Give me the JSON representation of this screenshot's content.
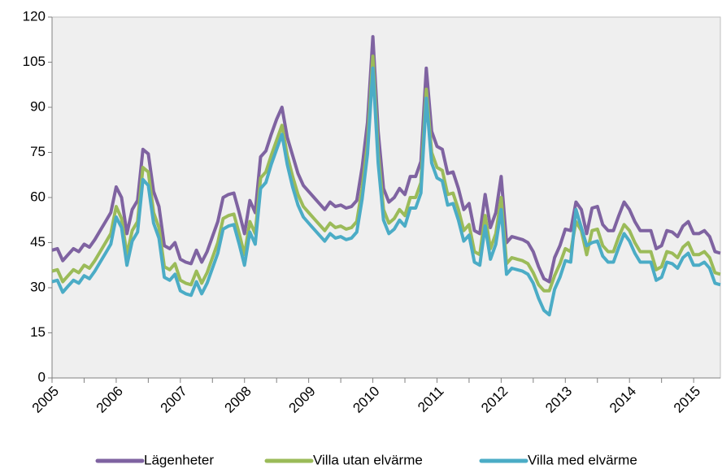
{
  "chart_data": {
    "type": "line",
    "categories": [
      "2005",
      null,
      null,
      null,
      null,
      null,
      null,
      null,
      null,
      null,
      null,
      null,
      "2006",
      null,
      null,
      null,
      null,
      null,
      null,
      null,
      null,
      null,
      null,
      null,
      "2007",
      null,
      null,
      null,
      null,
      null,
      null,
      null,
      null,
      null,
      null,
      null,
      "2008",
      null,
      null,
      null,
      null,
      null,
      null,
      null,
      null,
      null,
      null,
      null,
      "2009",
      null,
      null,
      null,
      null,
      null,
      null,
      null,
      null,
      null,
      null,
      null,
      "2010",
      null,
      null,
      null,
      null,
      null,
      null,
      null,
      null,
      null,
      null,
      null,
      "2011",
      null,
      null,
      null,
      null,
      null,
      null,
      null,
      null,
      null,
      null,
      null,
      "2012",
      null,
      null,
      null,
      null,
      null,
      null,
      null,
      null,
      null,
      null,
      null,
      "2013",
      null,
      null,
      null,
      null,
      null,
      null,
      null,
      null,
      null,
      null,
      null,
      "2014",
      null,
      null,
      null,
      null,
      null,
      null,
      null,
      null,
      null,
      null,
      null,
      "2015",
      null,
      null,
      null,
      null,
      null
    ],
    "series": [
      {
        "name": "Lägenheter",
        "color": "#7f63a1",
        "values": [
          42.5,
          43,
          39,
          41,
          43,
          42,
          44.5,
          43.5,
          46,
          49,
          52,
          55,
          63.5,
          60,
          48,
          56,
          59,
          76,
          74.5,
          62,
          57,
          44,
          43,
          45,
          39.5,
          38.5,
          38,
          42.5,
          38.5,
          42,
          47,
          52,
          60,
          61,
          61.5,
          55,
          48,
          59,
          55,
          73.5,
          75.5,
          81,
          86,
          90,
          80,
          74,
          68,
          64,
          62,
          60,
          58,
          56,
          58.5,
          57,
          57.5,
          56.5,
          57,
          59,
          70,
          85,
          113.5,
          82,
          63,
          58.5,
          60,
          63,
          61,
          67,
          67,
          72,
          103,
          82,
          77,
          76,
          68,
          68.5,
          63,
          56,
          58,
          49,
          48,
          61,
          50,
          55,
          67,
          45,
          47,
          46.5,
          46,
          45,
          42,
          37,
          33,
          32,
          40,
          44,
          49.5,
          49,
          58.5,
          56,
          48,
          56.5,
          57,
          51,
          49,
          49,
          54,
          58.5,
          56,
          52,
          49,
          49,
          49,
          43,
          44,
          49,
          48.5,
          47,
          50.5,
          52,
          48,
          48,
          49,
          47,
          42,
          41.5
        ]
      },
      {
        "name": "Villa utan elvärme",
        "color": "#9bbb59",
        "values": [
          35.5,
          36,
          32,
          34,
          36,
          35,
          37.5,
          36.5,
          39,
          42,
          45,
          48,
          57,
          53,
          41,
          49,
          52,
          70,
          68.5,
          55,
          50,
          37,
          36,
          38,
          32.5,
          31.5,
          31,
          35.5,
          31.5,
          35,
          40,
          45,
          53,
          54,
          54.5,
          48,
          41,
          52,
          48,
          66.5,
          68.5,
          74,
          79,
          84,
          74,
          67,
          61,
          57,
          55,
          53,
          51,
          49,
          51.5,
          50,
          50.5,
          49.5,
          50,
          52,
          63,
          78,
          107,
          75,
          56,
          51.5,
          53,
          56,
          54,
          60,
          60,
          65,
          96,
          75,
          70,
          69,
          61,
          61.5,
          56,
          49,
          51,
          42,
          41,
          54,
          43,
          48,
          60,
          38,
          40,
          39.5,
          39,
          38,
          35,
          31,
          29,
          29,
          34,
          38,
          43,
          42,
          52,
          49,
          41,
          49,
          49.5,
          44,
          42,
          42,
          47,
          51,
          49,
          45,
          42,
          42,
          42,
          36,
          37,
          42,
          41.5,
          40,
          43.5,
          45,
          41,
          41,
          42,
          40,
          35,
          34.5
        ]
      },
      {
        "name": "Villa med elvärme",
        "color": "#4bacc6",
        "values": [
          32,
          32.5,
          28.5,
          30.5,
          32.5,
          31.5,
          34,
          33,
          35.5,
          38.5,
          41.5,
          44.5,
          53.5,
          50,
          37.5,
          45.5,
          48.5,
          66,
          64,
          51.5,
          46.5,
          33.5,
          32.5,
          34.5,
          29,
          28,
          27.5,
          32,
          28,
          31.5,
          36.5,
          41.5,
          49.5,
          50.5,
          51,
          44.5,
          37.5,
          48.5,
          44.5,
          63,
          65,
          71,
          76,
          81,
          71,
          63.5,
          57.5,
          53.5,
          51.5,
          49.5,
          47.5,
          45.5,
          48,
          46.5,
          47,
          46,
          46.5,
          48.5,
          59.5,
          74.5,
          103,
          71.5,
          52.5,
          48,
          49.5,
          52.5,
          50.5,
          56.5,
          56.5,
          61.5,
          93,
          71.5,
          66.5,
          65.5,
          57.5,
          58,
          52.5,
          45.5,
          47.5,
          38.5,
          37.5,
          50.5,
          39.5,
          44.5,
          56,
          34.5,
          36.5,
          36,
          35.5,
          34.5,
          31.5,
          26.5,
          22.5,
          21,
          29.5,
          33.5,
          39,
          38.5,
          56,
          50,
          44,
          45,
          45.5,
          40.5,
          38.5,
          38.5,
          43.5,
          48,
          45.5,
          41.5,
          38.5,
          38.5,
          38.5,
          32.5,
          33.5,
          38.5,
          38,
          36.5,
          40,
          41.5,
          37.5,
          37.5,
          38.5,
          36.5,
          31.5,
          31
        ]
      }
    ],
    "ylim": [
      0,
      120
    ],
    "yticks": [
      0,
      15,
      30,
      45,
      60,
      75,
      90,
      105,
      120
    ],
    "grid": false,
    "legend": "bottom"
  }
}
